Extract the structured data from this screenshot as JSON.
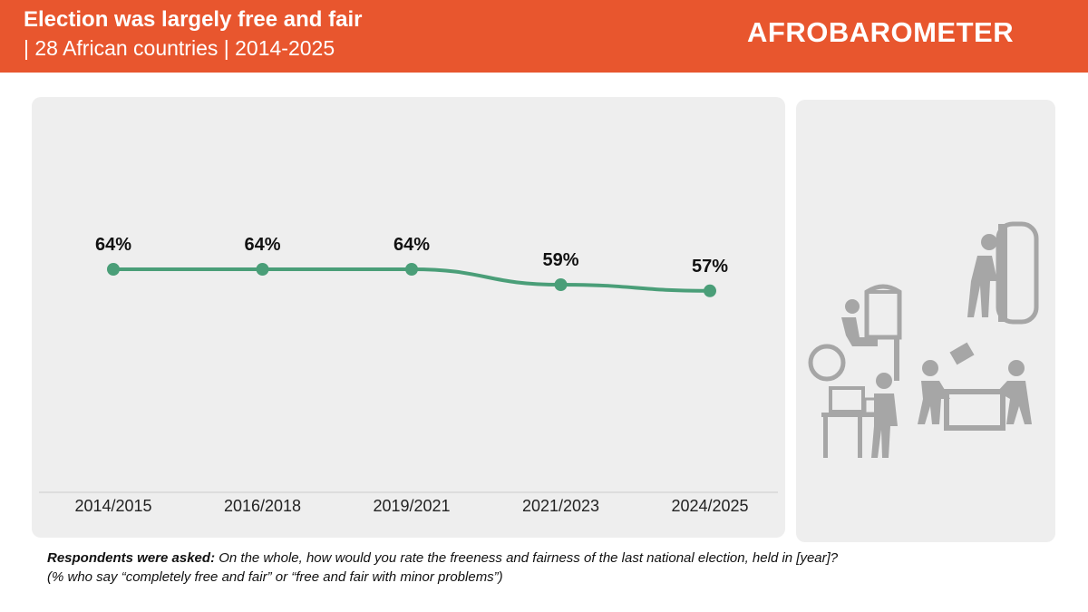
{
  "header": {
    "title": "Election was largely free and fair",
    "subtitle": "| 28 African countries | 2014-2025",
    "logo_text": "AFROBAROMETER",
    "background_color": "#e8562e"
  },
  "chart_data": {
    "type": "line",
    "categories": [
      "2014/2015",
      "2016/2018",
      "2019/2021",
      "2021/2023",
      "2024/2025"
    ],
    "series": [
      {
        "values": [
          64,
          64,
          64,
          59,
          57
        ],
        "color": "#4a9e78"
      }
    ],
    "data_labels": [
      "64%",
      "64%",
      "64%",
      "59%",
      "57%"
    ],
    "title": "",
    "xlabel": "",
    "ylabel": "",
    "grid": false,
    "legend": "none"
  },
  "illustration": {
    "icon": "voting-people-icon",
    "color": "#a6a6a6"
  },
  "footnote": {
    "label": "Respondents were asked:",
    "question": "On the whole, how would you rate the freeness and fairness of the last national election, held in [year]?",
    "note": "(% who say “completely free and fair” or “free and fair with minor problems”)"
  }
}
